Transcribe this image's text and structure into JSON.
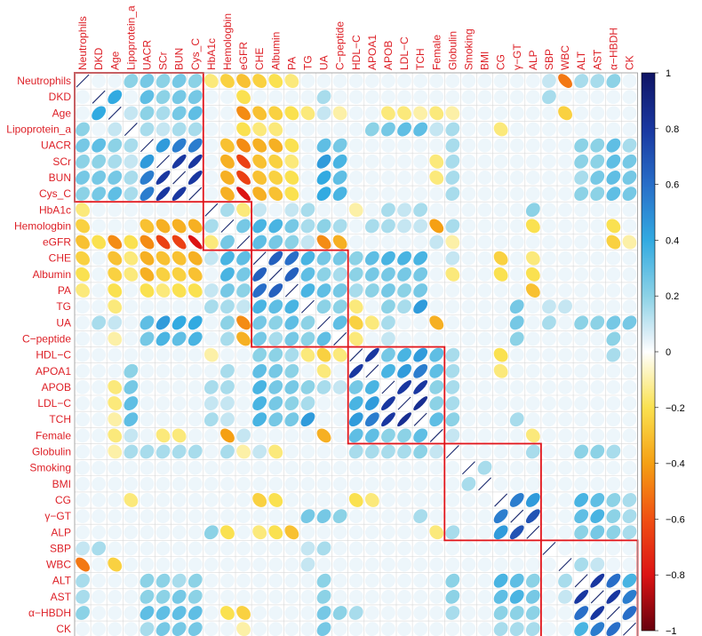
{
  "chart_data": {
    "type": "heatmap",
    "subtype": "correlation matrix (corrplot ellipse, hierarchical-cluster ordering)",
    "variables": [
      "Neutrophils",
      "DKD",
      "Age",
      "Lipoprotein_a",
      "UACR",
      "SCr",
      "BUN",
      "Cys_C",
      "HbA1c",
      "Hemologbin",
      "eGFR",
      "CHE",
      "Albumin",
      "PA",
      "TG",
      "UA",
      "C−peptide",
      "HDL−C",
      "APOA1",
      "APOB",
      "LDL−C",
      "TCH",
      "Female",
      "Globulin",
      "Smoking",
      "BMI",
      "CG",
      "γ−GT",
      "ALP",
      "SBP",
      "WBC",
      "ALT",
      "AST",
      "α−HBDH",
      "CK"
    ],
    "color_range": [
      -1,
      1
    ],
    "colorbar_ticks": [
      "1",
      "0.8",
      "0.6",
      "0.4",
      "0.2",
      "0",
      "−0.2",
      "−0.4",
      "−0.6",
      "−0.8",
      "−1"
    ],
    "colorbar_stops": [
      "#67001f",
      "#b2182b",
      "#d6604d",
      "#f4a582",
      "#fddbc7",
      "#f7f7f7",
      "#d1e5f0",
      "#92c5de",
      "#4393c3",
      "#2166ac",
      "#053061"
    ],
    "cluster_boxes": [
      {
        "start": 1,
        "end": 8
      },
      {
        "start": 9,
        "end": 11
      },
      {
        "start": 12,
        "end": 17
      },
      {
        "start": 18,
        "end": 23
      },
      {
        "start": 24,
        "end": 29
      },
      {
        "start": 30,
        "end": 35
      }
    ],
    "correlations": [
      {
        "a": 1,
        "b": 4,
        "r": 0.2
      },
      {
        "a": 1,
        "b": 5,
        "r": 0.25
      },
      {
        "a": 1,
        "b": 6,
        "r": 0.2
      },
      {
        "a": 1,
        "b": 7,
        "r": 0.25
      },
      {
        "a": 1,
        "b": 8,
        "r": 0.2
      },
      {
        "a": 1,
        "b": 9,
        "r": -0.15
      },
      {
        "a": 1,
        "b": 10,
        "r": -0.25
      },
      {
        "a": 1,
        "b": 11,
        "r": -0.3
      },
      {
        "a": 1,
        "b": 12,
        "r": -0.25
      },
      {
        "a": 1,
        "b": 13,
        "r": -0.2
      },
      {
        "a": 1,
        "b": 14,
        "r": -0.15
      },
      {
        "a": 1,
        "b": 30,
        "r": 0.1
      },
      {
        "a": 1,
        "b": 31,
        "r": -0.5
      },
      {
        "a": 1,
        "b": 32,
        "r": 0.15
      },
      {
        "a": 1,
        "b": 33,
        "r": 0.15
      },
      {
        "a": 1,
        "b": 34,
        "r": 0.2
      },
      {
        "a": 2,
        "b": 3,
        "r": 0.4
      },
      {
        "a": 2,
        "b": 5,
        "r": 0.3
      },
      {
        "a": 2,
        "b": 6,
        "r": 0.2
      },
      {
        "a": 2,
        "b": 7,
        "r": 0.25
      },
      {
        "a": 2,
        "b": 8,
        "r": 0.25
      },
      {
        "a": 2,
        "b": 11,
        "r": -0.2
      },
      {
        "a": 2,
        "b": 16,
        "r": 0.15
      },
      {
        "a": 2,
        "b": 30,
        "r": 0.15
      },
      {
        "a": 3,
        "b": 4,
        "r": 0.1
      },
      {
        "a": 3,
        "b": 5,
        "r": 0.2
      },
      {
        "a": 3,
        "b": 6,
        "r": 0.15
      },
      {
        "a": 3,
        "b": 7,
        "r": 0.25
      },
      {
        "a": 3,
        "b": 8,
        "r": 0.3
      },
      {
        "a": 3,
        "b": 11,
        "r": -0.45
      },
      {
        "a": 3,
        "b": 12,
        "r": -0.3
      },
      {
        "a": 3,
        "b": 13,
        "r": -0.25
      },
      {
        "a": 3,
        "b": 14,
        "r": -0.2
      },
      {
        "a": 3,
        "b": 15,
        "r": -0.15
      },
      {
        "a": 3,
        "b": 16,
        "r": 0.1
      },
      {
        "a": 3,
        "b": 17,
        "r": -0.1
      },
      {
        "a": 3,
        "b": 20,
        "r": -0.15
      },
      {
        "a": 3,
        "b": 21,
        "r": -0.15
      },
      {
        "a": 3,
        "b": 22,
        "r": -0.1
      },
      {
        "a": 3,
        "b": 23,
        "r": -0.15
      },
      {
        "a": 3,
        "b": 24,
        "r": -0.1
      },
      {
        "a": 3,
        "b": 31,
        "r": -0.25
      },
      {
        "a": 4,
        "b": 5,
        "r": 0.15
      },
      {
        "a": 4,
        "b": 6,
        "r": 0.1
      },
      {
        "a": 4,
        "b": 7,
        "r": 0.15
      },
      {
        "a": 4,
        "b": 8,
        "r": 0.15
      },
      {
        "a": 4,
        "b": 11,
        "r": -0.2
      },
      {
        "a": 4,
        "b": 12,
        "r": -0.15
      },
      {
        "a": 4,
        "b": 13,
        "r": -0.15
      },
      {
        "a": 4,
        "b": 19,
        "r": 0.2
      },
      {
        "a": 4,
        "b": 20,
        "r": 0.25
      },
      {
        "a": 4,
        "b": 21,
        "r": 0.3
      },
      {
        "a": 4,
        "b": 22,
        "r": 0.3
      },
      {
        "a": 4,
        "b": 23,
        "r": 0.1
      },
      {
        "a": 4,
        "b": 24,
        "r": 0.15
      },
      {
        "a": 4,
        "b": 27,
        "r": -0.15
      },
      {
        "a": 5,
        "b": 6,
        "r": 0.45
      },
      {
        "a": 5,
        "b": 7,
        "r": 0.55
      },
      {
        "a": 5,
        "b": 8,
        "r": 0.55
      },
      {
        "a": 5,
        "b": 10,
        "r": -0.3
      },
      {
        "a": 5,
        "b": 11,
        "r": -0.45
      },
      {
        "a": 5,
        "b": 12,
        "r": -0.35
      },
      {
        "a": 5,
        "b": 13,
        "r": -0.35
      },
      {
        "a": 5,
        "b": 14,
        "r": -0.2
      },
      {
        "a": 5,
        "b": 16,
        "r": 0.3
      },
      {
        "a": 5,
        "b": 17,
        "r": 0.25
      },
      {
        "a": 5,
        "b": 24,
        "r": 0.15
      },
      {
        "a": 5,
        "b": 32,
        "r": 0.2
      },
      {
        "a": 5,
        "b": 33,
        "r": 0.2
      },
      {
        "a": 5,
        "b": 34,
        "r": 0.3
      },
      {
        "a": 5,
        "b": 35,
        "r": 0.15
      },
      {
        "a": 6,
        "b": 7,
        "r": 0.8
      },
      {
        "a": 6,
        "b": 8,
        "r": 0.8
      },
      {
        "a": 6,
        "b": 10,
        "r": -0.35
      },
      {
        "a": 6,
        "b": 11,
        "r": -0.65
      },
      {
        "a": 6,
        "b": 12,
        "r": -0.3
      },
      {
        "a": 6,
        "b": 13,
        "r": -0.25
      },
      {
        "a": 6,
        "b": 14,
        "r": -0.15
      },
      {
        "a": 6,
        "b": 16,
        "r": 0.45
      },
      {
        "a": 6,
        "b": 17,
        "r": 0.35
      },
      {
        "a": 6,
        "b": 23,
        "r": -0.15
      },
      {
        "a": 6,
        "b": 24,
        "r": 0.15
      },
      {
        "a": 6,
        "b": 32,
        "r": 0.2
      },
      {
        "a": 6,
        "b": 33,
        "r": 0.2
      },
      {
        "a": 6,
        "b": 34,
        "r": 0.3
      },
      {
        "a": 6,
        "b": 35,
        "r": 0.25
      },
      {
        "a": 7,
        "b": 8,
        "r": 0.8
      },
      {
        "a": 7,
        "b": 10,
        "r": -0.35
      },
      {
        "a": 7,
        "b": 11,
        "r": -0.65
      },
      {
        "a": 7,
        "b": 12,
        "r": -0.3
      },
      {
        "a": 7,
        "b": 13,
        "r": -0.25
      },
      {
        "a": 7,
        "b": 14,
        "r": -0.2
      },
      {
        "a": 7,
        "b": 16,
        "r": 0.4
      },
      {
        "a": 7,
        "b": 17,
        "r": 0.3
      },
      {
        "a": 7,
        "b": 23,
        "r": -0.15
      },
      {
        "a": 7,
        "b": 24,
        "r": 0.15
      },
      {
        "a": 7,
        "b": 32,
        "r": 0.15
      },
      {
        "a": 7,
        "b": 33,
        "r": 0.25
      },
      {
        "a": 7,
        "b": 34,
        "r": 0.3
      },
      {
        "a": 7,
        "b": 35,
        "r": 0.25
      },
      {
        "a": 8,
        "b": 10,
        "r": -0.35
      },
      {
        "a": 8,
        "b": 11,
        "r": -0.8
      },
      {
        "a": 8,
        "b": 12,
        "r": -0.35
      },
      {
        "a": 8,
        "b": 13,
        "r": -0.3
      },
      {
        "a": 8,
        "b": 14,
        "r": -0.2
      },
      {
        "a": 8,
        "b": 16,
        "r": 0.4
      },
      {
        "a": 8,
        "b": 17,
        "r": 0.35
      },
      {
        "a": 8,
        "b": 24,
        "r": 0.15
      },
      {
        "a": 8,
        "b": 32,
        "r": 0.2
      },
      {
        "a": 8,
        "b": 33,
        "r": 0.2
      },
      {
        "a": 8,
        "b": 34,
        "r": 0.3
      },
      {
        "a": 8,
        "b": 35,
        "r": 0.25
      },
      {
        "a": 9,
        "b": 10,
        "r": 0.15
      },
      {
        "a": 9,
        "b": 11,
        "r": -0.15
      },
      {
        "a": 9,
        "b": 12,
        "r": 0.1
      },
      {
        "a": 9,
        "b": 14,
        "r": 0.1
      },
      {
        "a": 9,
        "b": 15,
        "r": 0.15
      },
      {
        "a": 9,
        "b": 18,
        "r": -0.1
      },
      {
        "a": 9,
        "b": 20,
        "r": 0.15
      },
      {
        "a": 9,
        "b": 21,
        "r": 0.1
      },
      {
        "a": 9,
        "b": 22,
        "r": 0.15
      },
      {
        "a": 9,
        "b": 29,
        "r": 0.2
      },
      {
        "a": 10,
        "b": 11,
        "r": 0.25
      },
      {
        "a": 10,
        "b": 12,
        "r": 0.35
      },
      {
        "a": 10,
        "b": 13,
        "r": 0.35
      },
      {
        "a": 10,
        "b": 14,
        "r": 0.25
      },
      {
        "a": 10,
        "b": 15,
        "r": 0.15
      },
      {
        "a": 10,
        "b": 16,
        "r": 0.2
      },
      {
        "a": 10,
        "b": 17,
        "r": 0.15
      },
      {
        "a": 10,
        "b": 19,
        "r": 0.15
      },
      {
        "a": 10,
        "b": 20,
        "r": 0.15
      },
      {
        "a": 10,
        "b": 21,
        "r": 0.1
      },
      {
        "a": 10,
        "b": 22,
        "r": 0.1
      },
      {
        "a": 10,
        "b": 23,
        "r": -0.4
      },
      {
        "a": 10,
        "b": 24,
        "r": 0.15
      },
      {
        "a": 10,
        "b": 29,
        "r": -0.2
      },
      {
        "a": 10,
        "b": 34,
        "r": -0.2
      },
      {
        "a": 11,
        "b": 12,
        "r": 0.3
      },
      {
        "a": 11,
        "b": 13,
        "r": 0.25
      },
      {
        "a": 11,
        "b": 14,
        "r": 0.2
      },
      {
        "a": 11,
        "b": 15,
        "r": 0.1
      },
      {
        "a": 11,
        "b": 16,
        "r": -0.45
      },
      {
        "a": 11,
        "b": 17,
        "r": -0.35
      },
      {
        "a": 11,
        "b": 23,
        "r": 0.1
      },
      {
        "a": 11,
        "b": 24,
        "r": -0.1
      },
      {
        "a": 11,
        "b": 34,
        "r": -0.25
      },
      {
        "a": 11,
        "b": 35,
        "r": -0.1
      },
      {
        "a": 12,
        "b": 13,
        "r": 0.65
      },
      {
        "a": 12,
        "b": 14,
        "r": 0.6
      },
      {
        "a": 12,
        "b": 15,
        "r": 0.35
      },
      {
        "a": 12,
        "b": 16,
        "r": 0.25
      },
      {
        "a": 12,
        "b": 17,
        "r": 0.25
      },
      {
        "a": 12,
        "b": 18,
        "r": 0.2
      },
      {
        "a": 12,
        "b": 19,
        "r": 0.3
      },
      {
        "a": 12,
        "b": 20,
        "r": 0.35
      },
      {
        "a": 12,
        "b": 21,
        "r": 0.35
      },
      {
        "a": 12,
        "b": 22,
        "r": 0.35
      },
      {
        "a": 12,
        "b": 24,
        "r": 0.1
      },
      {
        "a": 12,
        "b": 27,
        "r": -0.25
      },
      {
        "a": 12,
        "b": 29,
        "r": -0.15
      },
      {
        "a": 13,
        "b": 14,
        "r": 0.65
      },
      {
        "a": 13,
        "b": 15,
        "r": 0.3
      },
      {
        "a": 13,
        "b": 16,
        "r": 0.2
      },
      {
        "a": 13,
        "b": 17,
        "r": 0.15
      },
      {
        "a": 13,
        "b": 18,
        "r": 0.2
      },
      {
        "a": 13,
        "b": 19,
        "r": 0.25
      },
      {
        "a": 13,
        "b": 20,
        "r": 0.25
      },
      {
        "a": 13,
        "b": 21,
        "r": 0.25
      },
      {
        "a": 13,
        "b": 22,
        "r": 0.25
      },
      {
        "a": 13,
        "b": 24,
        "r": -0.15
      },
      {
        "a": 13,
        "b": 27,
        "r": -0.2
      },
      {
        "a": 13,
        "b": 29,
        "r": -0.2
      },
      {
        "a": 14,
        "b": 15,
        "r": 0.35
      },
      {
        "a": 14,
        "b": 16,
        "r": 0.3
      },
      {
        "a": 14,
        "b": 17,
        "r": 0.25
      },
      {
        "a": 14,
        "b": 18,
        "r": 0.15
      },
      {
        "a": 14,
        "b": 19,
        "r": 0.2
      },
      {
        "a": 14,
        "b": 20,
        "r": 0.25
      },
      {
        "a": 14,
        "b": 21,
        "r": 0.2
      },
      {
        "a": 14,
        "b": 22,
        "r": 0.25
      },
      {
        "a": 14,
        "b": 29,
        "r": -0.3
      },
      {
        "a": 15,
        "b": 16,
        "r": 0.2
      },
      {
        "a": 15,
        "b": 17,
        "r": 0.2
      },
      {
        "a": 15,
        "b": 18,
        "r": -0.15
      },
      {
        "a": 15,
        "b": 20,
        "r": 0.2
      },
      {
        "a": 15,
        "b": 21,
        "r": 0.15
      },
      {
        "a": 15,
        "b": 22,
        "r": 0.45
      },
      {
        "a": 15,
        "b": 28,
        "r": 0.25
      },
      {
        "a": 15,
        "b": 30,
        "r": 0.1
      },
      {
        "a": 15,
        "b": 31,
        "r": 0.1
      },
      {
        "a": 16,
        "b": 17,
        "r": 0.3
      },
      {
        "a": 16,
        "b": 18,
        "r": -0.25
      },
      {
        "a": 16,
        "b": 19,
        "r": -0.15
      },
      {
        "a": 16,
        "b": 20,
        "r": 0.15
      },
      {
        "a": 16,
        "b": 23,
        "r": -0.35
      },
      {
        "a": 16,
        "b": 28,
        "r": 0.25
      },
      {
        "a": 16,
        "b": 30,
        "r": 0.15
      },
      {
        "a": 16,
        "b": 32,
        "r": 0.2
      },
      {
        "a": 16,
        "b": 33,
        "r": 0.2
      },
      {
        "a": 16,
        "b": 34,
        "r": 0.25
      },
      {
        "a": 16,
        "b": 35,
        "r": 0.25
      },
      {
        "a": 17,
        "b": 18,
        "r": -0.15
      },
      {
        "a": 17,
        "b": 20,
        "r": 0.1
      },
      {
        "a": 17,
        "b": 28,
        "r": 0.2
      },
      {
        "a": 17,
        "b": 34,
        "r": 0.2
      },
      {
        "a": 18,
        "b": 19,
        "r": 0.8
      },
      {
        "a": 18,
        "b": 20,
        "r": 0.25
      },
      {
        "a": 18,
        "b": 21,
        "r": 0.35
      },
      {
        "a": 18,
        "b": 22,
        "r": 0.45
      },
      {
        "a": 18,
        "b": 23,
        "r": 0.3
      },
      {
        "a": 18,
        "b": 24,
        "r": 0.15
      },
      {
        "a": 18,
        "b": 27,
        "r": -0.2
      },
      {
        "a": 18,
        "b": 34,
        "r": 0.15
      },
      {
        "a": 19,
        "b": 20,
        "r": 0.35
      },
      {
        "a": 19,
        "b": 21,
        "r": 0.45
      },
      {
        "a": 19,
        "b": 22,
        "r": 0.55
      },
      {
        "a": 19,
        "b": 23,
        "r": 0.3
      },
      {
        "a": 19,
        "b": 24,
        "r": 0.15
      },
      {
        "a": 19,
        "b": 27,
        "r": -0.15
      },
      {
        "a": 20,
        "b": 21,
        "r": 0.8
      },
      {
        "a": 20,
        "b": 22,
        "r": 0.8
      },
      {
        "a": 20,
        "b": 23,
        "r": 0.2
      },
      {
        "a": 20,
        "b": 24,
        "r": 0.15
      },
      {
        "a": 21,
        "b": 22,
        "r": 0.85
      },
      {
        "a": 21,
        "b": 23,
        "r": 0.2
      },
      {
        "a": 21,
        "b": 24,
        "r": 0.15
      },
      {
        "a": 22,
        "b": 23,
        "r": 0.3
      },
      {
        "a": 22,
        "b": 24,
        "r": 0.2
      },
      {
        "a": 22,
        "b": 28,
        "r": 0.15
      },
      {
        "a": 23,
        "b": 24,
        "r": 0.1
      },
      {
        "a": 23,
        "b": 29,
        "r": -0.15
      },
      {
        "a": 24,
        "b": 29,
        "r": 0.15
      },
      {
        "a": 24,
        "b": 32,
        "r": 0.2
      },
      {
        "a": 24,
        "b": 33,
        "r": 0.2
      },
      {
        "a": 24,
        "b": 34,
        "r": 0.15
      },
      {
        "a": 25,
        "b": 26,
        "r": 0.15
      },
      {
        "a": 27,
        "b": 28,
        "r": 0.55
      },
      {
        "a": 27,
        "b": 29,
        "r": 0.45
      },
      {
        "a": 27,
        "b": 32,
        "r": 0.35
      },
      {
        "a": 27,
        "b": 33,
        "r": 0.3
      },
      {
        "a": 27,
        "b": 34,
        "r": 0.2
      },
      {
        "a": 27,
        "b": 35,
        "r": 0.15
      },
      {
        "a": 28,
        "b": 29,
        "r": 0.7
      },
      {
        "a": 28,
        "b": 32,
        "r": 0.3
      },
      {
        "a": 28,
        "b": 33,
        "r": 0.35
      },
      {
        "a": 28,
        "b": 34,
        "r": 0.2
      },
      {
        "a": 28,
        "b": 35,
        "r": 0.15
      },
      {
        "a": 29,
        "b": 32,
        "r": 0.2
      },
      {
        "a": 29,
        "b": 33,
        "r": 0.25
      },
      {
        "a": 29,
        "b": 34,
        "r": 0.2
      },
      {
        "a": 29,
        "b": 35,
        "r": 0.15
      },
      {
        "a": 31,
        "b": 32,
        "r": 0.15
      },
      {
        "a": 31,
        "b": 33,
        "r": 0.1
      },
      {
        "a": 32,
        "b": 33,
        "r": 0.8
      },
      {
        "a": 32,
        "b": 34,
        "r": 0.6
      },
      {
        "a": 32,
        "b": 35,
        "r": 0.35
      },
      {
        "a": 33,
        "b": 34,
        "r": 0.8
      },
      {
        "a": 33,
        "b": 35,
        "r": 0.55
      },
      {
        "a": 34,
        "b": 35,
        "r": 0.6
      }
    ]
  }
}
